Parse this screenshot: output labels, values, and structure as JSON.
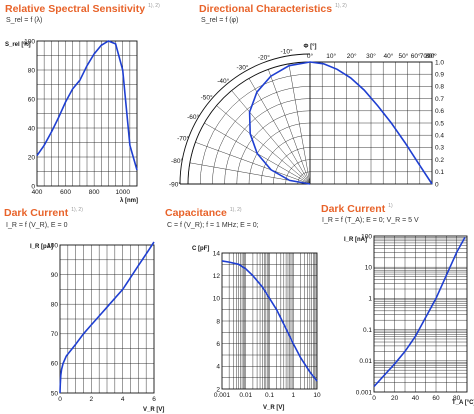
{
  "colors": {
    "title": "#e8632a",
    "curve": "#1f3fd1",
    "grid": "#222222",
    "sup": "#999999"
  },
  "chart_data": [
    {
      "type": "line",
      "title": "Relative Spectral Sensitivity",
      "title_sup": "1), 2)",
      "subtitle": "S_rel = f (λ)",
      "ylabel": "S_rel [%]",
      "xlabel": "λ [nm]",
      "xlim": [
        400,
        1100
      ],
      "ylim": [
        0,
        100
      ],
      "xticks": [
        400,
        600,
        800,
        1000
      ],
      "yticks": [
        0,
        20,
        40,
        60,
        80,
        100
      ],
      "x": [
        400,
        450,
        500,
        550,
        600,
        650,
        700,
        750,
        800,
        850,
        900,
        950,
        1000,
        1050,
        1100
      ],
      "y": [
        21,
        28,
        37,
        47,
        58,
        67,
        73,
        83,
        91,
        97,
        100,
        98,
        80,
        28,
        11
      ]
    },
    {
      "type": "line",
      "subtype": "polar",
      "title": "Directional Characteristics",
      "title_sup": "1), 2)",
      "subtitle": "S_rel = f (φ)",
      "angle_label": "Φ [°]",
      "angle_ticks": [
        -90,
        -80,
        -70,
        -60,
        -50,
        -40,
        -30,
        -20,
        -10,
        0,
        10,
        20,
        30,
        40,
        50,
        60,
        70,
        80,
        90
      ],
      "radial_ticks": [
        "0",
        "0.1",
        "0.2",
        "0.3",
        "0.4",
        "0.5",
        "0.6",
        "0.7",
        "0.8",
        "0.9",
        "1.0"
      ],
      "angle": [
        0,
        10,
        20,
        30,
        40,
        50,
        60,
        70,
        80,
        90
      ],
      "value": [
        1.0,
        0.985,
        0.94,
        0.87,
        0.77,
        0.64,
        0.5,
        0.34,
        0.17,
        0.0
      ]
    },
    {
      "type": "line",
      "title": "Dark Current",
      "title_sup": "1), 2)",
      "subtitle": "I_R = f (V_R), E = 0",
      "ylabel": "I_R [pA]",
      "xlabel": "V_R [V]",
      "xlim": [
        0,
        6
      ],
      "ylim": [
        50,
        100
      ],
      "xticks": [
        0,
        2,
        4,
        6
      ],
      "yticks": [
        50,
        60,
        70,
        80,
        90,
        100
      ],
      "x": [
        0.0,
        0.02,
        0.05,
        0.1,
        0.2,
        0.4,
        0.7,
        1.0,
        1.5,
        2.0,
        2.5,
        3.0,
        3.5,
        4.0,
        4.5,
        5.0,
        5.5,
        6.0
      ],
      "y": [
        50,
        53,
        56,
        58,
        60,
        62.5,
        64.5,
        66.5,
        70,
        73,
        76,
        79,
        82,
        85,
        89,
        93,
        97,
        101
      ]
    },
    {
      "type": "line",
      "title": "Capacitance",
      "title_sup": "1), 2)",
      "subtitle": "C = f (V_R); f = 1 MHz; E = 0;",
      "ylabel": "C [pF]",
      "xlabel": "V_R [V]",
      "xscale": "log",
      "xlim": [
        0.001,
        10
      ],
      "ylim": [
        2,
        14
      ],
      "xticks": [
        "0.001",
        "0.01",
        "0.1",
        "1",
        "10"
      ],
      "yticks": [
        2,
        4,
        6,
        8,
        10,
        12,
        14
      ],
      "x": [
        0.001,
        0.002,
        0.005,
        0.01,
        0.02,
        0.05,
        0.1,
        0.2,
        0.5,
        1,
        2,
        5,
        10
      ],
      "y": [
        13.3,
        13.2,
        13.0,
        12.6,
        12.0,
        11.0,
        10.0,
        9.0,
        7.3,
        6.0,
        4.8,
        3.5,
        2.7
      ]
    },
    {
      "type": "line",
      "title": "Dark Current",
      "title_sup": "1)",
      "subtitle": "I_R = f (T_A); E = 0; V_R = 5 V",
      "ylabel": "I_R [nA]",
      "xlabel": "T_A [°C]",
      "yscale": "log",
      "xlim": [
        0,
        90
      ],
      "ylim": [
        0.001,
        100
      ],
      "xticks": [
        0,
        20,
        40,
        60,
        80
      ],
      "yticks": [
        "0.001",
        "0.01",
        "0.1",
        "1",
        "10",
        "100"
      ],
      "x": [
        0,
        20,
        30,
        40,
        60,
        80,
        88
      ],
      "y": [
        0.0015,
        0.008,
        0.02,
        0.06,
        1.0,
        30,
        90
      ]
    }
  ]
}
